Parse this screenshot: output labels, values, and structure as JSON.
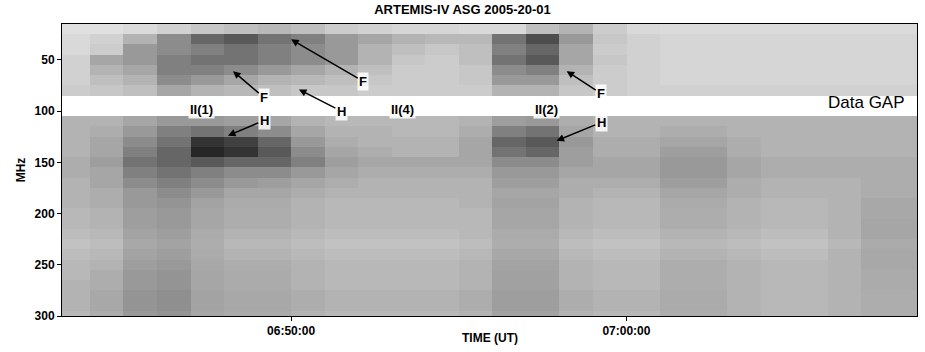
{
  "chart_data": {
    "type": "heatmap",
    "title": "ARTEMIS-IV ASG 2005-20-01",
    "xlabel": "TIME (UT)",
    "ylabel": "MHz",
    "x": [
      24210,
      24270,
      24330,
      24390,
      24450,
      24510,
      24570,
      24630,
      24690,
      24750,
      24810,
      24870,
      24930,
      24990,
      25050,
      25110,
      25170,
      25230,
      25290,
      25350,
      25410,
      25470,
      25530,
      25590,
      25650,
      25710
    ],
    "y": [
      20,
      30,
      40,
      50,
      60,
      70,
      80,
      90,
      100,
      110,
      120,
      130,
      140,
      150,
      160,
      170,
      180,
      190,
      200,
      210,
      220,
      230,
      240,
      250,
      260,
      270,
      280,
      290,
      300
    ],
    "z": [
      [
        12,
        12,
        14,
        18,
        22,
        25,
        28,
        25,
        20,
        18,
        16,
        16,
        15,
        15,
        25,
        30,
        20,
        15,
        14,
        14,
        14,
        14,
        14,
        14,
        14,
        14
      ],
      [
        15,
        18,
        30,
        45,
        60,
        65,
        55,
        50,
        40,
        35,
        30,
        28,
        28,
        55,
        70,
        40,
        22,
        18,
        16,
        16,
        16,
        16,
        16,
        16,
        16,
        16
      ],
      [
        15,
        20,
        40,
        45,
        50,
        55,
        50,
        45,
        40,
        30,
        25,
        22,
        25,
        50,
        60,
        35,
        20,
        18,
        16,
        16,
        16,
        16,
        16,
        16,
        16,
        16
      ],
      [
        18,
        35,
        40,
        50,
        55,
        55,
        50,
        45,
        40,
        30,
        22,
        20,
        25,
        55,
        65,
        35,
        22,
        18,
        16,
        16,
        16,
        16,
        16,
        16,
        16,
        16
      ],
      [
        18,
        30,
        35,
        50,
        50,
        45,
        40,
        35,
        30,
        25,
        20,
        20,
        22,
        45,
        50,
        30,
        20,
        18,
        16,
        16,
        16,
        16,
        16,
        16,
        16,
        16
      ],
      [
        18,
        25,
        30,
        45,
        40,
        35,
        30,
        28,
        25,
        22,
        20,
        20,
        22,
        40,
        40,
        25,
        20,
        18,
        16,
        16,
        16,
        16,
        16,
        16,
        16,
        16
      ],
      [
        20,
        22,
        25,
        35,
        30,
        28,
        25,
        22,
        22,
        20,
        20,
        20,
        20,
        30,
        30,
        22,
        20,
        18,
        18,
        18,
        18,
        18,
        18,
        18,
        18,
        18
      ],
      [
        null,
        null,
        null,
        null,
        null,
        null,
        null,
        null,
        null,
        null,
        null,
        null,
        null,
        null,
        null,
        null,
        null,
        null,
        null,
        null,
        null,
        null,
        null,
        null,
        null,
        null
      ],
      [
        null,
        null,
        null,
        null,
        null,
        null,
        null,
        null,
        null,
        null,
        null,
        null,
        null,
        null,
        null,
        null,
        null,
        null,
        null,
        null,
        null,
        null,
        null,
        null,
        null,
        null
      ],
      [
        30,
        30,
        35,
        40,
        40,
        38,
        35,
        30,
        28,
        28,
        28,
        28,
        30,
        38,
        40,
        32,
        30,
        30,
        30,
        30,
        30,
        30,
        30,
        30,
        30,
        30
      ],
      [
        30,
        32,
        40,
        50,
        55,
        50,
        45,
        35,
        30,
        30,
        28,
        28,
        32,
        50,
        55,
        35,
        30,
        30,
        32,
        32,
        30,
        30,
        30,
        30,
        30,
        30
      ],
      [
        30,
        35,
        45,
        55,
        80,
        75,
        60,
        40,
        32,
        30,
        30,
        30,
        35,
        60,
        65,
        40,
        32,
        32,
        35,
        35,
        32,
        30,
        30,
        30,
        30,
        30
      ],
      [
        30,
        35,
        50,
        60,
        85,
        80,
        65,
        45,
        35,
        32,
        30,
        30,
        35,
        55,
        60,
        38,
        32,
        32,
        38,
        38,
        32,
        30,
        30,
        30,
        30,
        30
      ],
      [
        32,
        38,
        55,
        60,
        65,
        60,
        60,
        50,
        38,
        35,
        35,
        35,
        35,
        45,
        45,
        38,
        35,
        35,
        40,
        40,
        35,
        32,
        32,
        32,
        32,
        32
      ],
      [
        32,
        35,
        50,
        55,
        50,
        45,
        45,
        40,
        35,
        32,
        32,
        32,
        32,
        40,
        40,
        35,
        35,
        35,
        40,
        40,
        35,
        32,
        32,
        32,
        32,
        32
      ],
      [
        30,
        35,
        45,
        50,
        45,
        40,
        38,
        35,
        32,
        30,
        30,
        30,
        30,
        38,
        38,
        32,
        32,
        32,
        38,
        38,
        32,
        30,
        30,
        30,
        32,
        32
      ],
      [
        30,
        32,
        40,
        45,
        40,
        35,
        35,
        32,
        30,
        30,
        30,
        30,
        30,
        35,
        35,
        32,
        30,
        30,
        35,
        35,
        32,
        30,
        30,
        30,
        32,
        32
      ],
      [
        30,
        32,
        40,
        42,
        36,
        33,
        33,
        30,
        28,
        28,
        28,
        28,
        30,
        36,
        36,
        30,
        28,
        28,
        33,
        33,
        30,
        28,
        28,
        30,
        34,
        34
      ],
      [
        28,
        30,
        38,
        40,
        35,
        32,
        32,
        30,
        28,
        28,
        28,
        28,
        28,
        35,
        35,
        30,
        28,
        28,
        32,
        32,
        30,
        28,
        28,
        30,
        34,
        34
      ],
      [
        28,
        30,
        38,
        40,
        35,
        32,
        32,
        30,
        28,
        28,
        28,
        28,
        28,
        35,
        35,
        30,
        28,
        28,
        32,
        32,
        30,
        28,
        28,
        30,
        35,
        35
      ],
      [
        26,
        28,
        36,
        38,
        33,
        30,
        30,
        28,
        26,
        26,
        26,
        26,
        28,
        33,
        33,
        28,
        26,
        26,
        30,
        30,
        28,
        26,
        26,
        30,
        35,
        35
      ],
      [
        24,
        26,
        34,
        36,
        32,
        28,
        28,
        26,
        24,
        24,
        24,
        24,
        26,
        32,
        32,
        26,
        24,
        24,
        28,
        28,
        26,
        24,
        24,
        28,
        33,
        33
      ],
      [
        26,
        28,
        36,
        38,
        33,
        30,
        30,
        28,
        26,
        26,
        26,
        26,
        28,
        34,
        34,
        28,
        26,
        26,
        30,
        30,
        28,
        26,
        26,
        30,
        34,
        34
      ],
      [
        28,
        30,
        38,
        40,
        34,
        32,
        32,
        30,
        28,
        28,
        28,
        28,
        30,
        36,
        36,
        30,
        28,
        28,
        32,
        32,
        30,
        28,
        28,
        30,
        34,
        34
      ],
      [
        28,
        32,
        40,
        42,
        35,
        33,
        33,
        30,
        28,
        28,
        28,
        28,
        30,
        37,
        37,
        30,
        28,
        28,
        32,
        32,
        30,
        28,
        28,
        30,
        33,
        33
      ],
      [
        30,
        32,
        40,
        42,
        35,
        33,
        33,
        30,
        28,
        28,
        28,
        28,
        30,
        37,
        37,
        30,
        28,
        28,
        32,
        32,
        30,
        28,
        28,
        30,
        33,
        33
      ],
      [
        30,
        34,
        42,
        44,
        36,
        34,
        34,
        32,
        30,
        30,
        30,
        30,
        32,
        38,
        38,
        32,
        30,
        30,
        33,
        33,
        30,
        28,
        28,
        30,
        32,
        32
      ],
      [
        30,
        34,
        42,
        44,
        36,
        34,
        34,
        32,
        30,
        30,
        30,
        30,
        32,
        38,
        38,
        32,
        30,
        30,
        33,
        33,
        30,
        28,
        28,
        30,
        32,
        32
      ],
      [
        28,
        32,
        40,
        42,
        35,
        33,
        33,
        30,
        28,
        28,
        28,
        28,
        30,
        36,
        36,
        30,
        28,
        28,
        32,
        32,
        30,
        28,
        28,
        30,
        32,
        32
      ]
    ],
    "zlim": [
      0,
      100
    ],
    "xlim": [
      24190,
      25720
    ],
    "ylim": [
      300,
      15
    ],
    "xticks": [
      {
        "value": 24600,
        "label": "06:50:00"
      },
      {
        "value": 25200,
        "label": "07:00:00"
      }
    ],
    "yticks": [
      50,
      100,
      150,
      200,
      250,
      300
    ],
    "grid": false,
    "annotations": [
      {
        "label": "II(1)",
        "fundamental": "F",
        "harmonic": "H"
      },
      {
        "label": "II(4)",
        "fundamental": "F",
        "harmonic": "H"
      },
      {
        "label": "II(2)",
        "fundamental": "F",
        "harmonic": "H"
      }
    ],
    "gap_label": "Data GAP"
  }
}
